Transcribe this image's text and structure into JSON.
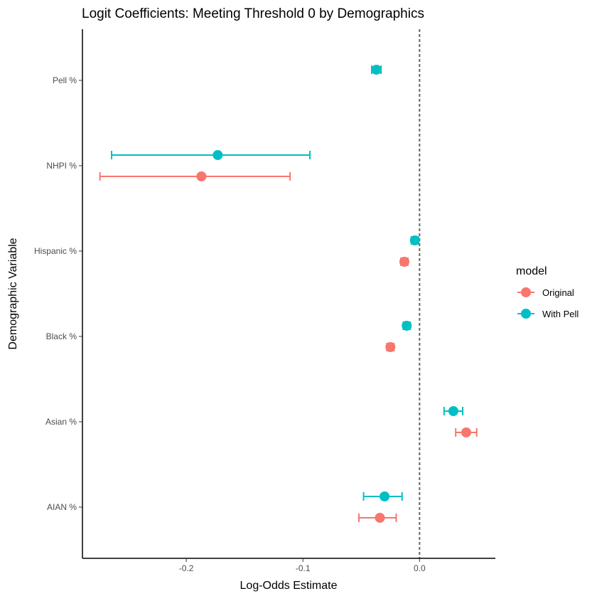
{
  "chart_data": {
    "type": "scatter",
    "title": "Logit Coefficients: Meeting Threshold 0 by Demographics",
    "xlabel": "Log-Odds Estimate",
    "ylabel": "Demographic Variable",
    "xlim": [
      -0.289,
      0.065
    ],
    "x_ticks": [
      -0.2,
      -0.1,
      0.0
    ],
    "x_tick_labels": [
      "-0.2",
      "-0.1",
      "0.0"
    ],
    "categories": [
      "Pell %",
      "NHPI %",
      "Hispanic %",
      "Black %",
      "Asian %",
      "AIAN %"
    ],
    "reference_line": {
      "x": 0,
      "style": "dashed",
      "color": "#666666"
    },
    "grid": false,
    "legend": {
      "title": "model",
      "position": "right"
    },
    "series": [
      {
        "name": "Original",
        "color": "#F8766D",
        "points": [
          {
            "category": "NHPI %",
            "estimate": -0.187,
            "low": -0.274,
            "high": -0.111
          },
          {
            "category": "Hispanic %",
            "estimate": -0.013,
            "low": -0.016,
            "high": -0.01
          },
          {
            "category": "Black %",
            "estimate": -0.025,
            "low": -0.028,
            "high": -0.022
          },
          {
            "category": "Asian %",
            "estimate": 0.04,
            "low": 0.031,
            "high": 0.049
          },
          {
            "category": "AIAN %",
            "estimate": -0.034,
            "low": -0.052,
            "high": -0.02
          }
        ]
      },
      {
        "name": "With Pell",
        "color": "#00BFC4",
        "points": [
          {
            "category": "Pell %",
            "estimate": -0.037,
            "low": -0.041,
            "high": -0.033
          },
          {
            "category": "NHPI %",
            "estimate": -0.173,
            "low": -0.264,
            "high": -0.094
          },
          {
            "category": "Hispanic %",
            "estimate": -0.004,
            "low": -0.007,
            "high": -0.001
          },
          {
            "category": "Black %",
            "estimate": -0.011,
            "low": -0.014,
            "high": -0.008
          },
          {
            "category": "Asian %",
            "estimate": 0.029,
            "low": 0.021,
            "high": 0.037
          },
          {
            "category": "AIAN %",
            "estimate": -0.03,
            "low": -0.048,
            "high": -0.015
          }
        ]
      }
    ]
  }
}
